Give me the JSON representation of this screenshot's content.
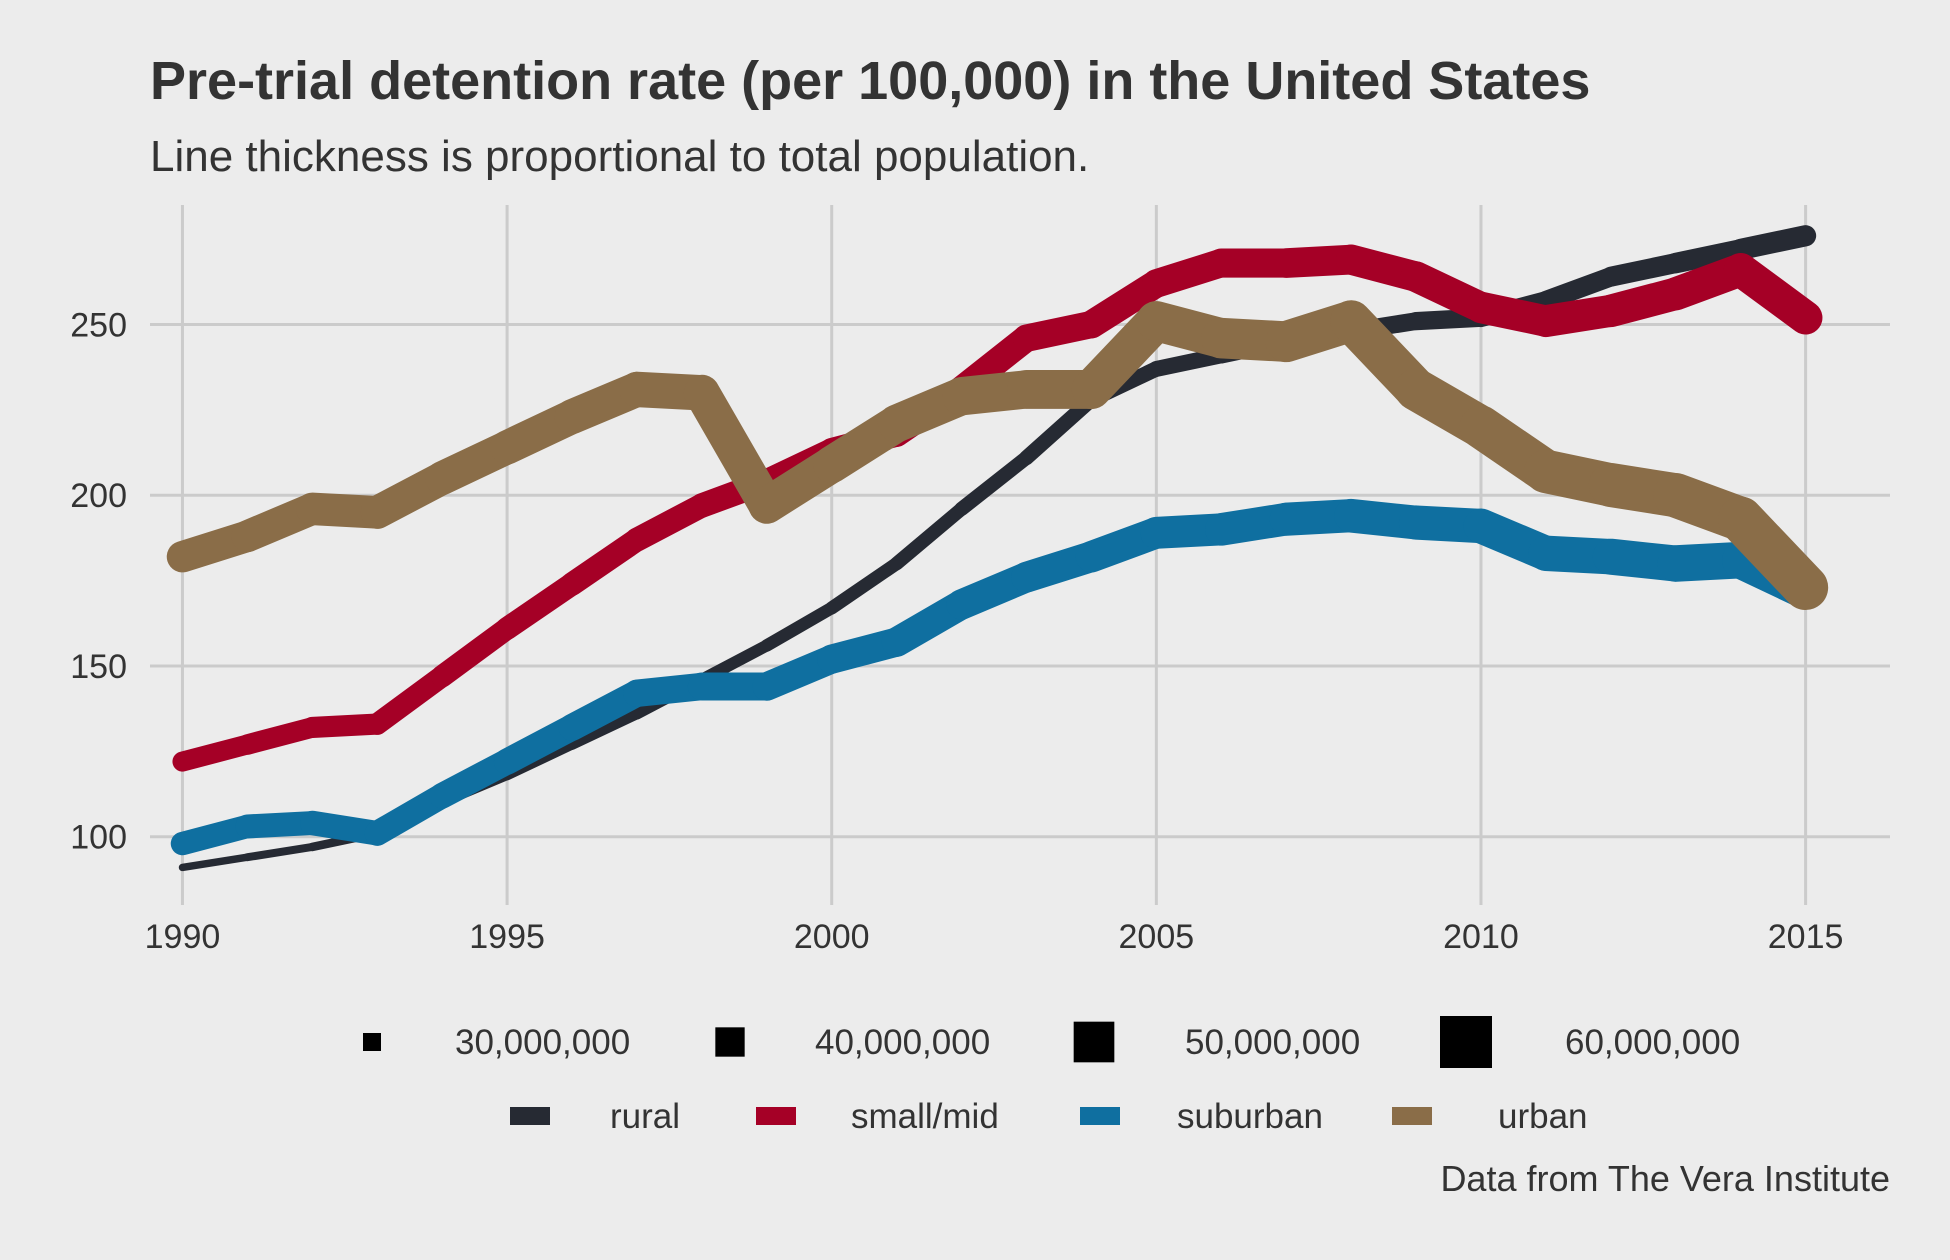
{
  "chart_data": {
    "type": "line",
    "title": "Pre-trial detention rate (per 100,000) in the United States",
    "subtitle": "Line thickness is proportional to total population.",
    "caption": "Data from The Vera Institute",
    "xlabel": "",
    "ylabel": "",
    "xlim": [
      1989.5,
      2016.3
    ],
    "ylim": [
      80,
      285
    ],
    "x_ticks": [
      1990,
      1995,
      2000,
      2005,
      2010,
      2015
    ],
    "y_ticks": [
      100,
      150,
      200,
      250
    ],
    "grid": true,
    "legend_placement": "bottom",
    "x": [
      1990,
      1991,
      1992,
      1993,
      1994,
      1995,
      1996,
      1997,
      1998,
      1999,
      2000,
      2001,
      2002,
      2003,
      2004,
      2005,
      2006,
      2007,
      2008,
      2009,
      2010,
      2011,
      2012,
      2013,
      2014,
      2015
    ],
    "series": [
      {
        "name": "rural",
        "color": "#262a33",
        "values": [
          91,
          94,
          97,
          101,
          110,
          118,
          127,
          136,
          146,
          156,
          167,
          180,
          196,
          211,
          228,
          237,
          241,
          245,
          248,
          251,
          252,
          257,
          264,
          268,
          272,
          276
        ],
        "population": [
          31000000,
          31500000,
          32000000,
          32500000,
          33000000,
          33500000,
          34000000,
          34500000,
          35000000,
          35500000,
          36000000,
          36500000,
          37000000,
          37500000,
          38000000,
          38500000,
          39000000,
          39500000,
          40000000,
          40500000,
          41000000,
          41500000,
          42000000,
          42500000,
          43000000,
          43500000
        ]
      },
      {
        "name": "small/mid",
        "color": "#a50026",
        "values": [
          122,
          127,
          132,
          133,
          147,
          161,
          174,
          187,
          197,
          204,
          213,
          218,
          231,
          246,
          250,
          262,
          268,
          268,
          269,
          264,
          255,
          251,
          254,
          259,
          266,
          252
        ],
        "population": [
          42000000,
          42500000,
          43000000,
          43500000,
          44000000,
          44500000,
          45000000,
          45500000,
          46000000,
          46500000,
          47000000,
          47500000,
          48000000,
          48500000,
          49000000,
          49500000,
          50000000,
          50500000,
          51000000,
          51500000,
          52000000,
          52500000,
          53000000,
          53500000,
          54000000,
          54500000
        ]
      },
      {
        "name": "suburban",
        "color": "#0f6fa0",
        "values": [
          98,
          103,
          104,
          101,
          112,
          122,
          132,
          142,
          144,
          144,
          152,
          157,
          168,
          176,
          182,
          189,
          190,
          193,
          194,
          192,
          191,
          183,
          182,
          180,
          181,
          172
        ],
        "population": [
          45000000,
          45500000,
          46000000,
          46500000,
          47000000,
          47500000,
          48000000,
          48500000,
          49000000,
          49500000,
          50000000,
          50500000,
          51000000,
          51500000,
          52000000,
          52500000,
          53000000,
          53500000,
          54000000,
          54500000,
          55000000,
          55500000,
          56000000,
          56500000,
          57000000,
          57500000
        ]
      },
      {
        "name": "urban",
        "color": "#8a6d48",
        "values": [
          182,
          188,
          196,
          195,
          205,
          214,
          223,
          231,
          230,
          197,
          209,
          221,
          229,
          231,
          231,
          251,
          246,
          245,
          251,
          231,
          220,
          207,
          203,
          200,
          193,
          173
        ],
        "population": [
          52000000,
          52500000,
          53000000,
          53500000,
          54000000,
          54500000,
          55000000,
          55500000,
          56000000,
          56500000,
          57000000,
          57500000,
          58000000,
          58500000,
          59000000,
          59500000,
          60000000,
          60500000,
          61000000,
          61500000,
          62000000,
          62500000,
          63000000,
          63500000,
          64000000,
          64500000
        ]
      }
    ],
    "size_legend": {
      "entries": [
        {
          "label": "30,000,000",
          "value": 30000000
        },
        {
          "label": "40,000,000",
          "value": 40000000
        },
        {
          "label": "50,000,000",
          "value": 50000000
        },
        {
          "label": "60,000,000",
          "value": 60000000
        }
      ]
    },
    "colors": {
      "background": "#ececec",
      "grid": "#cbcbcb",
      "text": "#333333",
      "size_key": "#000000"
    }
  }
}
